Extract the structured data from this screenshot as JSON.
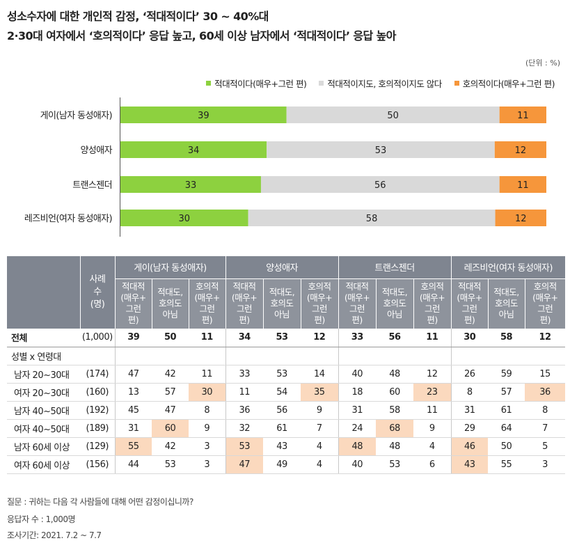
{
  "titles": {
    "line1": "성소수자에 대한 개인적 감정, ‘적대적이다’ 30 ~ 40%대",
    "line2": "2·30대 여자에서 ‘호의적이다’ 응답 높고, 60세 이상 남자에서 ‘적대적이다’ 응답 높아"
  },
  "unit": "(단위 : %)",
  "legend": {
    "hostile": "적대적이다(매우+그런 편)",
    "neutral": "적대적이지도, 호의적이지도 않다",
    "favorable": "호의적이다(매우+그런 편)"
  },
  "colors": {
    "hostile": "#8dd13f",
    "neutral": "#d9d9d9",
    "favorable": "#f6963b",
    "highlight": "#fbd9be",
    "header": "#7f8590"
  },
  "chart_data": {
    "type": "bar",
    "orientation": "horizontal-stacked",
    "categories": [
      "게이(남자 동성애자)",
      "양성애자",
      "트랜스젠더",
      "레즈비언(여자 동성애자)"
    ],
    "series": [
      {
        "name": "적대적이다(매우+그런 편)",
        "values": [
          39,
          34,
          33,
          30
        ]
      },
      {
        "name": "적대적이지도, 호의적이지도 않다",
        "values": [
          50,
          53,
          56,
          58
        ]
      },
      {
        "name": "호의적이다(매우+그런 편)",
        "values": [
          11,
          12,
          11,
          12
        ]
      }
    ],
    "legend": "top-right"
  },
  "table": {
    "sample_header": "사례수 (명)",
    "groups": [
      "게이(남자 동성애자)",
      "양성애자",
      "트랜스젠더",
      "레즈비언(여자 동성애자)"
    ],
    "subheaders": [
      "적대적 (매우+ 그런 편)",
      "적대도, 호의도 아님",
      "호의적 (매우+ 그런 편)"
    ],
    "section_label": "성별 x 연령대",
    "total": {
      "label": "전체",
      "n": "(1,000)",
      "values": [
        39,
        50,
        11,
        34,
        53,
        12,
        33,
        56,
        11,
        30,
        58,
        12
      ]
    },
    "rows": [
      {
        "label": "남자 20~30대",
        "n": "(174)",
        "values": [
          47,
          42,
          11,
          33,
          53,
          14,
          40,
          48,
          12,
          26,
          59,
          15
        ],
        "highlight": []
      },
      {
        "label": "여자 20~30대",
        "n": "(160)",
        "values": [
          13,
          57,
          30,
          11,
          54,
          35,
          18,
          60,
          23,
          8,
          57,
          36
        ],
        "highlight": [
          2,
          5,
          8,
          11
        ]
      },
      {
        "label": "남자 40~50대",
        "n": "(192)",
        "values": [
          45,
          47,
          8,
          36,
          56,
          9,
          31,
          58,
          11,
          31,
          61,
          8
        ],
        "highlight": []
      },
      {
        "label": "여자 40~50대",
        "n": "(189)",
        "values": [
          31,
          60,
          9,
          32,
          61,
          7,
          24,
          68,
          9,
          29,
          64,
          7
        ],
        "highlight": [
          1,
          7
        ]
      },
      {
        "label": "남자 60세 이상",
        "n": "(129)",
        "values": [
          55,
          42,
          3,
          53,
          43,
          4,
          48,
          48,
          4,
          46,
          50,
          5
        ],
        "highlight": [
          0,
          3,
          6,
          9
        ]
      },
      {
        "label": "여자 60세 이상",
        "n": "(156)",
        "values": [
          44,
          53,
          3,
          47,
          49,
          4,
          40,
          53,
          6,
          43,
          55,
          3
        ],
        "highlight": [
          3,
          9
        ]
      }
    ]
  },
  "footnotes": {
    "question": "질문 :  귀하는 다음 각 사람들에 대해 어떤 감정이십니까?",
    "respondents": "응답자 수 : 1,000명",
    "period": "조사기간: 2021. 7.2 ~ 7.7"
  }
}
